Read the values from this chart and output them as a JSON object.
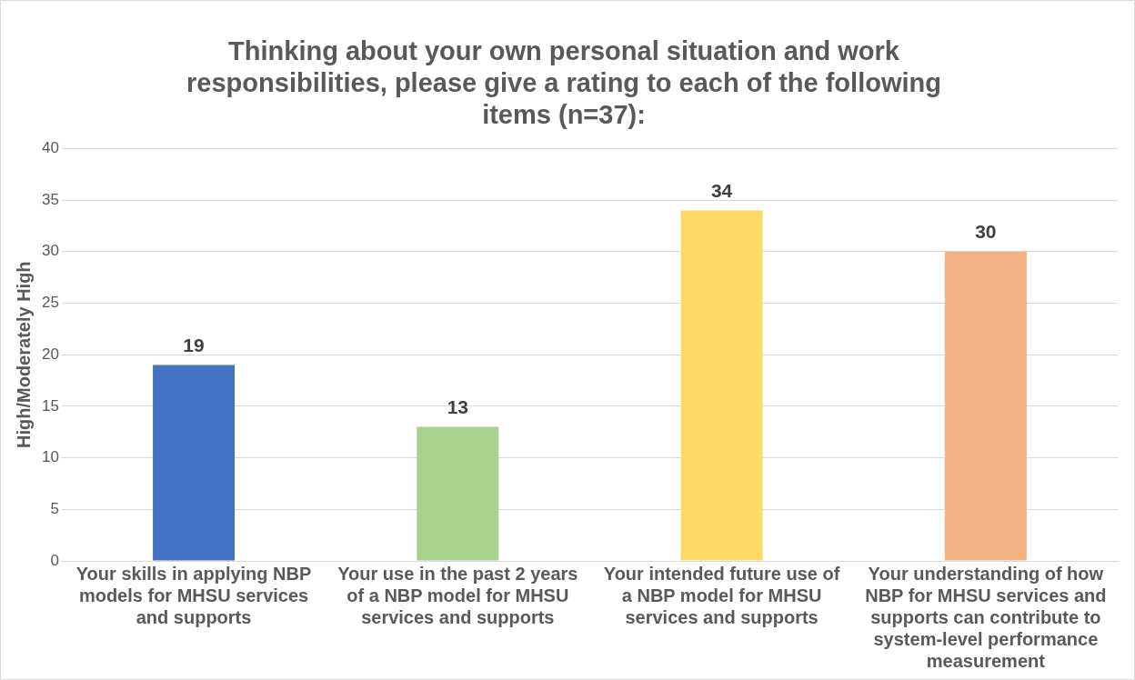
{
  "chart_data": {
    "type": "bar",
    "title": "Thinking about your own personal situation and work responsibilities, please give a rating to each of the following items (n=37):",
    "ylabel": "High/Moderately High",
    "categories": [
      "Your skills in applying NBP models for MHSU services and supports",
      "Your use in the past 2 years of a NBP model for MHSU services and supports",
      "Your intended future use of a NBP model for MHSU services and supports",
      "Your understanding of how NBP for MHSU services and supports can contribute to system-level performance measurement"
    ],
    "values": [
      19,
      13,
      34,
      30
    ],
    "colors": [
      "#4472c4",
      "#a9d18e",
      "#ffd966",
      "#f4b183"
    ],
    "ylim": [
      0,
      40
    ],
    "yticks": [
      0,
      5,
      10,
      15,
      20,
      25,
      30,
      35,
      40
    ],
    "grid": "y",
    "legend": false,
    "data_labels": true
  }
}
